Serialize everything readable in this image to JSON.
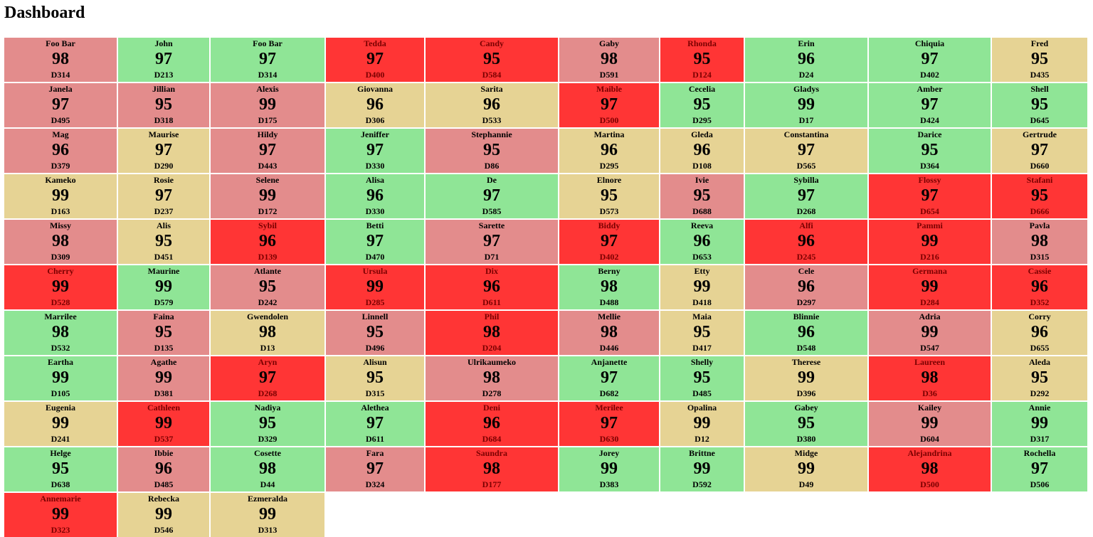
{
  "page": {
    "title": "Dashboard"
  },
  "colors": {
    "green": "#8fe596",
    "pink": "#e38c8c",
    "tan": "#e6d394",
    "red": "#ff3535"
  },
  "cells": [
    {
      "name": "Foo Bar",
      "score": "98",
      "code": "D314",
      "status": "pink"
    },
    {
      "name": "John",
      "score": "97",
      "code": "D213",
      "status": "green"
    },
    {
      "name": "Foo Bar",
      "score": "97",
      "code": "D314",
      "status": "green"
    },
    {
      "name": "Tedda",
      "score": "97",
      "code": "D400",
      "status": "red"
    },
    {
      "name": "Candy",
      "score": "95",
      "code": "D584",
      "status": "red"
    },
    {
      "name": "Gaby",
      "score": "98",
      "code": "D591",
      "status": "pink"
    },
    {
      "name": "Rhonda",
      "score": "95",
      "code": "D124",
      "status": "red"
    },
    {
      "name": "Erin",
      "score": "96",
      "code": "D24",
      "status": "green"
    },
    {
      "name": "Chiquia",
      "score": "97",
      "code": "D402",
      "status": "green"
    },
    {
      "name": "Fred",
      "score": "95",
      "code": "D435",
      "status": "tan"
    },
    {
      "name": "Janela",
      "score": "97",
      "code": "D495",
      "status": "pink"
    },
    {
      "name": "Jillian",
      "score": "95",
      "code": "D318",
      "status": "pink"
    },
    {
      "name": "Alexis",
      "score": "99",
      "code": "D175",
      "status": "pink"
    },
    {
      "name": "Giovanna",
      "score": "96",
      "code": "D306",
      "status": "tan"
    },
    {
      "name": "Sarita",
      "score": "96",
      "code": "D533",
      "status": "tan"
    },
    {
      "name": "Maible",
      "score": "97",
      "code": "D500",
      "status": "red"
    },
    {
      "name": "Cecelia",
      "score": "95",
      "code": "D295",
      "status": "green"
    },
    {
      "name": "Gladys",
      "score": "99",
      "code": "D17",
      "status": "green"
    },
    {
      "name": "Amber",
      "score": "97",
      "code": "D424",
      "status": "green"
    },
    {
      "name": "Shell",
      "score": "95",
      "code": "D645",
      "status": "green"
    },
    {
      "name": "Mag",
      "score": "96",
      "code": "D379",
      "status": "pink"
    },
    {
      "name": "Maurise",
      "score": "97",
      "code": "D290",
      "status": "tan"
    },
    {
      "name": "Hildy",
      "score": "97",
      "code": "D443",
      "status": "pink"
    },
    {
      "name": "Jeniffer",
      "score": "97",
      "code": "D330",
      "status": "green"
    },
    {
      "name": "Stephannie",
      "score": "95",
      "code": "D86",
      "status": "pink"
    },
    {
      "name": "Martina",
      "score": "96",
      "code": "D295",
      "status": "tan"
    },
    {
      "name": "Gleda",
      "score": "96",
      "code": "D108",
      "status": "tan"
    },
    {
      "name": "Constantina",
      "score": "97",
      "code": "D565",
      "status": "tan"
    },
    {
      "name": "Darice",
      "score": "95",
      "code": "D364",
      "status": "green"
    },
    {
      "name": "Gertrude",
      "score": "97",
      "code": "D660",
      "status": "tan"
    },
    {
      "name": "Kameko",
      "score": "99",
      "code": "D163",
      "status": "tan"
    },
    {
      "name": "Rosie",
      "score": "97",
      "code": "D237",
      "status": "tan"
    },
    {
      "name": "Selene",
      "score": "99",
      "code": "D172",
      "status": "pink"
    },
    {
      "name": "Alisa",
      "score": "96",
      "code": "D330",
      "status": "green"
    },
    {
      "name": "De",
      "score": "97",
      "code": "D585",
      "status": "green"
    },
    {
      "name": "Elnore",
      "score": "95",
      "code": "D573",
      "status": "tan"
    },
    {
      "name": "Ivie",
      "score": "95",
      "code": "D688",
      "status": "pink"
    },
    {
      "name": "Sybilla",
      "score": "97",
      "code": "D268",
      "status": "green"
    },
    {
      "name": "Flossy",
      "score": "97",
      "code": "D654",
      "status": "red"
    },
    {
      "name": "Stafani",
      "score": "95",
      "code": "D666",
      "status": "red"
    },
    {
      "name": "Missy",
      "score": "98",
      "code": "D309",
      "status": "pink"
    },
    {
      "name": "Alis",
      "score": "95",
      "code": "D451",
      "status": "tan"
    },
    {
      "name": "Sybil",
      "score": "96",
      "code": "D139",
      "status": "red"
    },
    {
      "name": "Betti",
      "score": "97",
      "code": "D470",
      "status": "green"
    },
    {
      "name": "Sarette",
      "score": "97",
      "code": "D71",
      "status": "pink"
    },
    {
      "name": "Biddy",
      "score": "97",
      "code": "D402",
      "status": "red"
    },
    {
      "name": "Reeva",
      "score": "96",
      "code": "D653",
      "status": "green"
    },
    {
      "name": "Alfi",
      "score": "96",
      "code": "D245",
      "status": "red"
    },
    {
      "name": "Pammi",
      "score": "99",
      "code": "D216",
      "status": "red"
    },
    {
      "name": "Pavla",
      "score": "98",
      "code": "D315",
      "status": "pink"
    },
    {
      "name": "Cherry",
      "score": "99",
      "code": "D528",
      "status": "red"
    },
    {
      "name": "Maurine",
      "score": "99",
      "code": "D579",
      "status": "green"
    },
    {
      "name": "Atlante",
      "score": "95",
      "code": "D242",
      "status": "pink"
    },
    {
      "name": "Ursula",
      "score": "99",
      "code": "D285",
      "status": "red"
    },
    {
      "name": "Dix",
      "score": "96",
      "code": "D611",
      "status": "red"
    },
    {
      "name": "Berny",
      "score": "98",
      "code": "D488",
      "status": "green"
    },
    {
      "name": "Etty",
      "score": "99",
      "code": "D418",
      "status": "tan"
    },
    {
      "name": "Cele",
      "score": "96",
      "code": "D297",
      "status": "pink"
    },
    {
      "name": "Germana",
      "score": "99",
      "code": "D284",
      "status": "red"
    },
    {
      "name": "Cassie",
      "score": "96",
      "code": "D352",
      "status": "red"
    },
    {
      "name": "Marrilee",
      "score": "98",
      "code": "D532",
      "status": "green"
    },
    {
      "name": "Faina",
      "score": "95",
      "code": "D135",
      "status": "pink"
    },
    {
      "name": "Gwendolen",
      "score": "98",
      "code": "D13",
      "status": "tan"
    },
    {
      "name": "Linnell",
      "score": "95",
      "code": "D496",
      "status": "pink"
    },
    {
      "name": "Phil",
      "score": "98",
      "code": "D204",
      "status": "red"
    },
    {
      "name": "Mellie",
      "score": "98",
      "code": "D446",
      "status": "pink"
    },
    {
      "name": "Maia",
      "score": "95",
      "code": "D417",
      "status": "tan"
    },
    {
      "name": "Blinnie",
      "score": "96",
      "code": "D548",
      "status": "green"
    },
    {
      "name": "Adria",
      "score": "99",
      "code": "D547",
      "status": "pink"
    },
    {
      "name": "Corry",
      "score": "96",
      "code": "D655",
      "status": "tan"
    },
    {
      "name": "Eartha",
      "score": "99",
      "code": "D105",
      "status": "green"
    },
    {
      "name": "Agathe",
      "score": "99",
      "code": "D381",
      "status": "pink"
    },
    {
      "name": "Aryn",
      "score": "97",
      "code": "D268",
      "status": "red"
    },
    {
      "name": "Alisun",
      "score": "95",
      "code": "D315",
      "status": "tan"
    },
    {
      "name": "Ulrikaumeko",
      "score": "98",
      "code": "D278",
      "status": "pink"
    },
    {
      "name": "Anjanette",
      "score": "97",
      "code": "D682",
      "status": "green"
    },
    {
      "name": "Shelly",
      "score": "95",
      "code": "D485",
      "status": "green"
    },
    {
      "name": "Therese",
      "score": "99",
      "code": "D396",
      "status": "tan"
    },
    {
      "name": "Laureen",
      "score": "98",
      "code": "D36",
      "status": "red"
    },
    {
      "name": "Aleda",
      "score": "95",
      "code": "D292",
      "status": "tan"
    },
    {
      "name": "Eugenia",
      "score": "99",
      "code": "D241",
      "status": "tan"
    },
    {
      "name": "Cathleen",
      "score": "99",
      "code": "D537",
      "status": "red"
    },
    {
      "name": "Nadiya",
      "score": "95",
      "code": "D329",
      "status": "green"
    },
    {
      "name": "Alethea",
      "score": "97",
      "code": "D611",
      "status": "green"
    },
    {
      "name": "Deni",
      "score": "96",
      "code": "D684",
      "status": "red"
    },
    {
      "name": "Merilee",
      "score": "97",
      "code": "D630",
      "status": "red"
    },
    {
      "name": "Opalina",
      "score": "99",
      "code": "D12",
      "status": "tan"
    },
    {
      "name": "Gabey",
      "score": "95",
      "code": "D380",
      "status": "green"
    },
    {
      "name": "Kailey",
      "score": "99",
      "code": "D604",
      "status": "pink"
    },
    {
      "name": "Annie",
      "score": "99",
      "code": "D317",
      "status": "green"
    },
    {
      "name": "Helge",
      "score": "95",
      "code": "D638",
      "status": "green"
    },
    {
      "name": "Ibbie",
      "score": "96",
      "code": "D485",
      "status": "pink"
    },
    {
      "name": "Cosette",
      "score": "98",
      "code": "D44",
      "status": "green"
    },
    {
      "name": "Fara",
      "score": "97",
      "code": "D324",
      "status": "pink"
    },
    {
      "name": "Saundra",
      "score": "98",
      "code": "D177",
      "status": "red"
    },
    {
      "name": "Jorey",
      "score": "99",
      "code": "D383",
      "status": "green"
    },
    {
      "name": "Brittne",
      "score": "99",
      "code": "D592",
      "status": "green"
    },
    {
      "name": "Midge",
      "score": "99",
      "code": "D49",
      "status": "tan"
    },
    {
      "name": "Alejandrina",
      "score": "98",
      "code": "D500",
      "status": "red"
    },
    {
      "name": "Rochella",
      "score": "97",
      "code": "D506",
      "status": "green"
    },
    {
      "name": "Annemarie",
      "score": "99",
      "code": "D323",
      "status": "red"
    },
    {
      "name": "Rebecka",
      "score": "99",
      "code": "D546",
      "status": "tan"
    },
    {
      "name": "Ezmeralda",
      "score": "99",
      "code": "D313",
      "status": "tan"
    }
  ]
}
